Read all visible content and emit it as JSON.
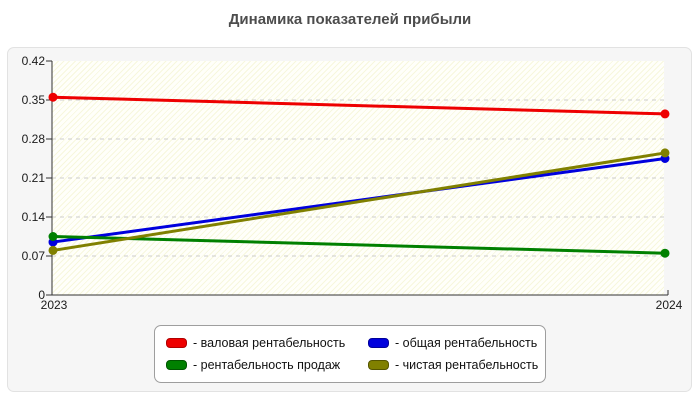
{
  "page": {
    "title": "Динамика показателей прибыли"
  },
  "chart_data": {
    "type": "line",
    "title": "Динамика показателей прибыли",
    "x_categories": [
      "2023",
      "2024"
    ],
    "series": [
      {
        "name": "валовая рентабельность",
        "legend_label": "- валовая рентабельность",
        "color": "#ee0000",
        "border_color": "#b00000",
        "values": [
          0.355,
          0.325
        ]
      },
      {
        "name": "общая рентабельность",
        "legend_label": "- общая рентабельность",
        "color": "#0000dd",
        "border_color": "#000099",
        "values": [
          0.095,
          0.245
        ]
      },
      {
        "name": "рентабельность продаж",
        "legend_label": "- рентабельность продаж",
        "color": "#008000",
        "border_color": "#005500",
        "values": [
          0.105,
          0.075
        ]
      },
      {
        "name": "чистая рентабельность",
        "legend_label": "- чистая рентабельность",
        "color": "#808000",
        "border_color": "#555500",
        "values": [
          0.08,
          0.255
        ]
      }
    ],
    "ylim": [
      0,
      0.42
    ],
    "ytick_values": [
      0,
      0.07,
      0.14,
      0.21,
      0.28,
      0.35,
      0.42
    ],
    "ytick_labels": [
      "0",
      "0.07",
      "0.14",
      "0.21",
      "0.28",
      "0.35",
      "0.42"
    ],
    "grid": "horizontal-dashed",
    "grid_color": "#cccccc",
    "axis_color": "#333333",
    "plot_bg_color": "#f7f7dd",
    "panel_bg_color": "#f6f6f6",
    "legend_position": "bottom-center",
    "marker": "circle"
  }
}
